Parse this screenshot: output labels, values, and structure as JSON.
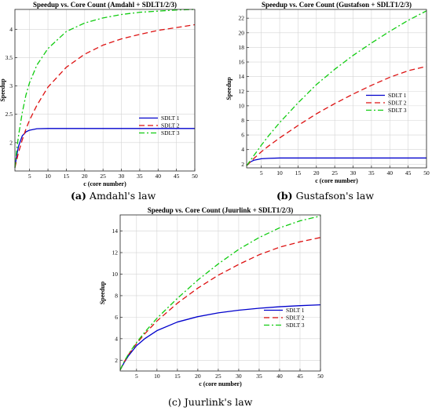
{
  "chart_data": [
    {
      "type": "line",
      "title": "Speedup vs. Core Count (Amdahl + SDLT1/2/3)",
      "xlabel": "c (core number)",
      "ylabel": "Speedup",
      "xlim": [
        1,
        50
      ],
      "ylim": [
        1.5,
        4.35
      ],
      "xticks": [
        5,
        10,
        15,
        20,
        25,
        30,
        35,
        40,
        45,
        50
      ],
      "yticks": [
        2,
        2.5,
        3,
        3.5,
        4
      ],
      "grid": true,
      "legend_position": "bottom-right",
      "caption_tag": "(a)",
      "caption_text": "Amdahl's law",
      "x": [
        1,
        1.5,
        2,
        3,
        4,
        5,
        7,
        10,
        15,
        20,
        25,
        30,
        35,
        40,
        45,
        50
      ],
      "series": [
        {
          "name": "SDLT 1",
          "color": "#0000cc",
          "dash": "solid",
          "values": [
            1.56,
            1.78,
            1.94,
            2.12,
            2.19,
            2.22,
            2.245,
            2.25,
            2.25,
            2.25,
            2.25,
            2.25,
            2.25,
            2.25,
            2.25,
            2.25
          ]
        },
        {
          "name": "SDLT 2",
          "color": "#dd1111",
          "dash": "dashed",
          "values": [
            1.56,
            1.7,
            1.83,
            2.05,
            2.24,
            2.4,
            2.66,
            2.98,
            3.33,
            3.56,
            3.72,
            3.83,
            3.91,
            3.98,
            4.03,
            4.08
          ]
        },
        {
          "name": "SDLT 3",
          "color": "#11cc11",
          "dash": "dashdot",
          "values": [
            1.56,
            1.88,
            2.13,
            2.53,
            2.84,
            3.06,
            3.37,
            3.66,
            3.96,
            4.11,
            4.2,
            4.26,
            4.3,
            4.32,
            4.34,
            4.35
          ]
        }
      ]
    },
    {
      "type": "line",
      "title": "Speedup vs. Core Count (Gustafson + SDLT1/2/3)",
      "xlabel": "c (core number)",
      "ylabel": "Speedup",
      "xlim": [
        1,
        50
      ],
      "ylim": [
        1.5,
        23.2
      ],
      "xticks": [
        5,
        10,
        15,
        20,
        25,
        30,
        35,
        40,
        45,
        50
      ],
      "yticks": [
        2,
        4,
        6,
        8,
        10,
        12,
        14,
        16,
        18,
        20,
        22
      ],
      "grid": true,
      "legend_position": "center-right",
      "caption_tag": "(b)",
      "caption_text": "Gustafson's law",
      "x": [
        1,
        2,
        3,
        5,
        7,
        10,
        15,
        20,
        25,
        30,
        35,
        40,
        45,
        50
      ],
      "series": [
        {
          "name": "SDLT 1",
          "color": "#0000cc",
          "dash": "solid",
          "values": [
            1.8,
            2.3,
            2.55,
            2.75,
            2.8,
            2.85,
            2.85,
            2.85,
            2.85,
            2.85,
            2.85,
            2.85,
            2.85,
            2.85
          ]
        },
        {
          "name": "SDLT 2",
          "color": "#dd1111",
          "dash": "dashed",
          "values": [
            1.8,
            2.3,
            2.8,
            3.7,
            4.5,
            5.6,
            7.3,
            8.9,
            10.3,
            11.6,
            12.8,
            13.9,
            14.8,
            15.4
          ]
        },
        {
          "name": "SDLT 3",
          "color": "#11cc11",
          "dash": "dashdot",
          "values": [
            1.8,
            2.5,
            3.2,
            4.6,
            5.9,
            7.7,
            10.4,
            12.9,
            15.0,
            16.9,
            18.6,
            20.2,
            21.7,
            23.0
          ]
        }
      ]
    },
    {
      "type": "line",
      "title": "Speedup vs. Core Count (Juurlink + SDLT1/2/3)",
      "xlabel": "c (core number)",
      "ylabel": "Speedup",
      "xlim": [
        1,
        50
      ],
      "ylim": [
        1,
        15.5
      ],
      "xticks": [
        5,
        10,
        15,
        20,
        25,
        30,
        35,
        40,
        45,
        50
      ],
      "yticks": [
        2,
        4,
        6,
        8,
        10,
        12,
        14
      ],
      "grid": true,
      "legend_position": "center-right",
      "caption_tag": "",
      "caption_text": "(c) Juurlink's law",
      "x": [
        1,
        2,
        3,
        5,
        7,
        10,
        15,
        20,
        25,
        30,
        35,
        40,
        45,
        50
      ],
      "series": [
        {
          "name": "SDLT 1",
          "color": "#0000cc",
          "dash": "solid",
          "values": [
            1.1,
            1.8,
            2.4,
            3.35,
            4.0,
            4.75,
            5.55,
            6.05,
            6.4,
            6.65,
            6.83,
            6.97,
            7.07,
            7.15
          ]
        },
        {
          "name": "SDLT 2",
          "color": "#dd1111",
          "dash": "dashed",
          "values": [
            1.1,
            1.85,
            2.5,
            3.55,
            4.45,
            5.65,
            7.3,
            8.7,
            9.9,
            10.9,
            11.8,
            12.5,
            13.0,
            13.4
          ]
        },
        {
          "name": "SDLT 3",
          "color": "#11cc11",
          "dash": "dashdot",
          "values": [
            1.1,
            1.9,
            2.55,
            3.65,
            4.6,
            5.9,
            7.75,
            9.45,
            10.95,
            12.3,
            13.4,
            14.3,
            14.95,
            15.4
          ]
        }
      ]
    }
  ]
}
